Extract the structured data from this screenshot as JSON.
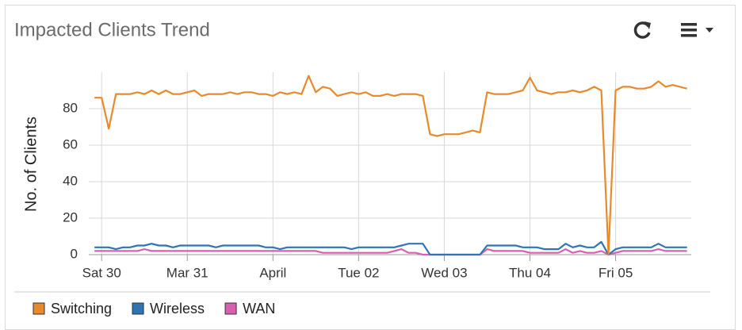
{
  "chart_data": {
    "type": "line",
    "title": "Impacted Clients Trend",
    "y_label": "No. of Clients",
    "xlim": [
      -0.8,
      83.6
    ],
    "xticks": [
      {
        "value": 1,
        "label": "Sat 30"
      },
      {
        "value": 13,
        "label": "Mar 31"
      },
      {
        "value": 25,
        "label": "April"
      },
      {
        "value": 37,
        "label": "Tue 02"
      },
      {
        "value": 49,
        "label": "Wed 03"
      },
      {
        "value": 61,
        "label": "Thu 04"
      },
      {
        "value": 73,
        "label": "Fri 05"
      }
    ],
    "ylim": [
      0,
      100
    ],
    "yticks": [
      0,
      20,
      40,
      60,
      80
    ],
    "grid": true,
    "legend": "bottom-left",
    "series": [
      {
        "name": "Switching",
        "color": "#e8892c",
        "values": [
          86,
          86,
          69,
          88,
          88,
          88,
          89,
          88,
          90,
          88,
          90,
          88,
          88,
          89,
          90,
          87,
          88,
          88,
          88,
          89,
          88,
          89,
          89,
          88,
          88,
          87,
          89,
          88,
          89,
          88,
          98,
          89,
          92,
          91,
          87,
          88,
          89,
          88,
          89,
          87,
          87,
          88,
          87,
          88,
          88,
          88,
          87,
          66,
          65,
          66,
          66,
          66,
          67,
          68,
          67,
          89,
          88,
          88,
          88,
          89,
          90,
          97,
          90,
          89,
          88,
          89,
          89,
          90,
          89,
          90,
          92,
          90,
          0,
          90,
          92,
          92,
          91,
          91,
          92,
          95,
          92,
          93,
          92,
          91
        ]
      },
      {
        "name": "Wireless",
        "color": "#2f75b5",
        "values": [
          4,
          4,
          4,
          3,
          4,
          4,
          5,
          5,
          6,
          5,
          5,
          4,
          5,
          5,
          5,
          5,
          5,
          4,
          5,
          5,
          5,
          5,
          5,
          5,
          4,
          4,
          3,
          4,
          4,
          4,
          4,
          4,
          4,
          4,
          4,
          4,
          3,
          4,
          4,
          4,
          4,
          4,
          4,
          5,
          6,
          6,
          6,
          0,
          0,
          0,
          0,
          0,
          0,
          0,
          0,
          5,
          5,
          5,
          5,
          5,
          4,
          4,
          4,
          3,
          3,
          3,
          6,
          4,
          5,
          4,
          4,
          7,
          0,
          3,
          4,
          4,
          4,
          4,
          4,
          6,
          4,
          4,
          4,
          4
        ]
      },
      {
        "name": "WAN",
        "color": "#d95fb0",
        "values": [
          2,
          2,
          2,
          2,
          2,
          2,
          2,
          3,
          2,
          2,
          2,
          2,
          2,
          2,
          2,
          2,
          2,
          2,
          2,
          2,
          2,
          2,
          2,
          2,
          2,
          2,
          2,
          2,
          2,
          2,
          2,
          2,
          1,
          1,
          1,
          1,
          1,
          1,
          1,
          1,
          1,
          1,
          2,
          3,
          1,
          1,
          0,
          0,
          0,
          0,
          0,
          0,
          0,
          0,
          0,
          3,
          2,
          2,
          2,
          2,
          2,
          1,
          1,
          1,
          1,
          1,
          3,
          1,
          2,
          1,
          1,
          2,
          0,
          1,
          2,
          2,
          2,
          2,
          2,
          3,
          2,
          2,
          2,
          2
        ]
      }
    ]
  }
}
